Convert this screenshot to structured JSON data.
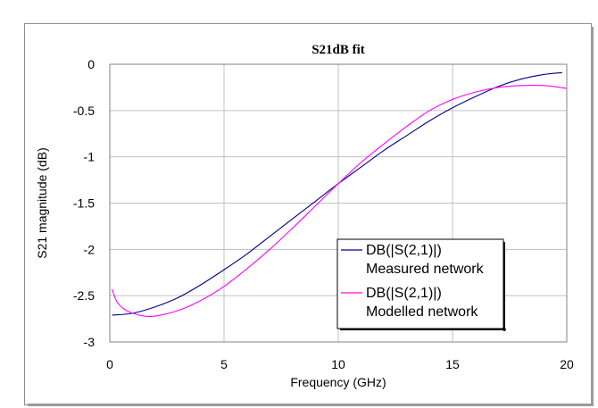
{
  "chart_data": {
    "type": "line",
    "title": "S21dB fit",
    "xlabel": "Frequency (GHz)",
    "ylabel": "S21 magnitude (dB)",
    "xlim": [
      0,
      20
    ],
    "ylim": [
      -3,
      0
    ],
    "xticks": [
      0,
      5,
      10,
      15,
      20
    ],
    "yticks": [
      0,
      -0.5,
      -1,
      -1.5,
      -2,
      -2.5,
      -3
    ],
    "grid": true,
    "legend_position": "bottom-right",
    "series": [
      {
        "name": "DB(|S(2,1)|)",
        "name_line2": "Measured network",
        "color": "#00008b",
        "x": [
          0.1,
          1,
          2,
          3,
          4,
          5,
          6,
          7,
          8,
          9,
          10,
          11,
          12,
          13,
          14,
          15,
          16,
          17,
          18,
          19,
          19.8
        ],
        "y": [
          -2.71,
          -2.69,
          -2.62,
          -2.52,
          -2.38,
          -2.22,
          -2.05,
          -1.86,
          -1.67,
          -1.48,
          -1.29,
          -1.11,
          -0.93,
          -0.77,
          -0.61,
          -0.47,
          -0.35,
          -0.24,
          -0.16,
          -0.11,
          -0.09
        ]
      },
      {
        "name": "DB(|S(2,1)|)",
        "name_line2": "Modelled network",
        "color": "#ff00ff",
        "x": [
          0.1,
          0.3,
          0.6,
          1,
          1.5,
          2,
          3,
          4,
          5,
          6,
          7,
          8,
          9,
          10,
          11,
          12,
          13,
          14,
          15,
          16,
          17,
          18,
          19,
          20
        ],
        "y": [
          -2.43,
          -2.56,
          -2.64,
          -2.69,
          -2.72,
          -2.72,
          -2.66,
          -2.55,
          -2.4,
          -2.21,
          -2.0,
          -1.77,
          -1.53,
          -1.29,
          -1.06,
          -0.86,
          -0.67,
          -0.5,
          -0.38,
          -0.3,
          -0.25,
          -0.23,
          -0.23,
          -0.26
        ]
      }
    ]
  }
}
